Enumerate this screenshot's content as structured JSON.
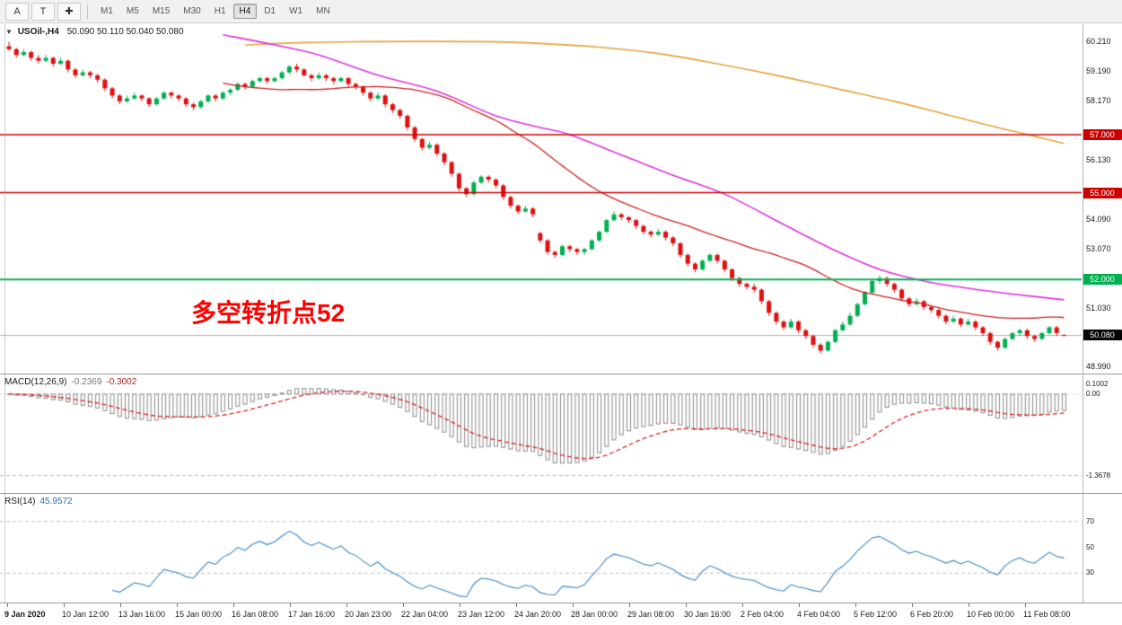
{
  "toolbar": {
    "tools": [
      {
        "id": "arrow-tool",
        "label": "A"
      },
      {
        "id": "text-tool",
        "label": "T"
      },
      {
        "id": "crosshair-tool",
        "label": "✚"
      }
    ],
    "timeframes": [
      "M1",
      "M5",
      "M15",
      "M30",
      "H1",
      "H4",
      "D1",
      "W1",
      "MN"
    ],
    "active_timeframe": "H4"
  },
  "chart": {
    "title": {
      "collapse_arrow": "▼",
      "symbol": "USOil-,H4",
      "ohlc": "50.090 50.110 50.040 50.080"
    },
    "annotation": {
      "text": "多空转折点52",
      "color": "#ff0000"
    }
  },
  "macd_label": {
    "name": "MACD(12,26,9)",
    "value_main": "-0.2369",
    "value_signal": "-0.3002"
  },
  "rsi_label": {
    "name": "RSI(14)",
    "value": "45.9572"
  },
  "chart_data": {
    "type": "candlestick",
    "symbol": "USOil-",
    "timeframe": "H4",
    "x_labels": [
      "9 Jan 2020",
      "10 Jan 12:00",
      "13 Jan 16:00",
      "15 Jan 00:00",
      "16 Jan 08:00",
      "17 Jan 16:00",
      "20 Jan 23:00",
      "22 Jan 04:00",
      "23 Jan 12:00",
      "24 Jan 20:00",
      "28 Jan 00:00",
      "29 Jan 08:00",
      "30 Jan 16:00",
      "2 Feb 04:00",
      "4 Feb 04:00",
      "5 Feb 12:00",
      "6 Feb 20:00",
      "10 Feb 00:00",
      "11 Feb 08:00"
    ],
    "main": {
      "ylim": [
        48.88,
        60.75
      ],
      "up_color": "#00b050",
      "down_color": "#e01010",
      "y_ticks": [
        {
          "label": "60.210",
          "price": 60.21
        },
        {
          "label": "59.190",
          "price": 59.19
        },
        {
          "label": "58.170",
          "price": 58.17
        },
        {
          "label": "56.130",
          "price": 56.13
        },
        {
          "label": "54.090",
          "price": 54.09
        },
        {
          "label": "53.070",
          "price": 53.07
        },
        {
          "label": "51.030",
          "price": 51.03
        },
        {
          "label": "48.990",
          "price": 48.99
        }
      ],
      "hlines": [
        {
          "price": 57.0,
          "label": "57.000",
          "color": "#cc0000"
        },
        {
          "price": 55.0,
          "label": "55.000",
          "color": "#cc0000"
        },
        {
          "price": 52.0,
          "label": "52.000",
          "color": "#00b050"
        }
      ],
      "current_price": {
        "price": 50.08,
        "label": "50.080",
        "line_color": "#b0b0b0",
        "badge_color": "#000000"
      },
      "ma_fast": {
        "period": 30,
        "color": "#cc2222"
      },
      "ma_mid": {
        "color": "#dd33dd",
        "points": [
          [
            29,
            60.45
          ],
          [
            36,
            60.1
          ],
          [
            42,
            59.75
          ],
          [
            50,
            59.05
          ],
          [
            58,
            58.5
          ],
          [
            66,
            57.65
          ],
          [
            72,
            57.25
          ],
          [
            76,
            57.0
          ],
          [
            84,
            56.2
          ],
          [
            90,
            55.6
          ],
          [
            97,
            54.95
          ],
          [
            105,
            53.9
          ],
          [
            112,
            53.0
          ],
          [
            118,
            52.35
          ],
          [
            124,
            51.95
          ],
          [
            130,
            51.7
          ],
          [
            136,
            51.5
          ],
          [
            143,
            51.3
          ]
        ]
      },
      "ma_slow": {
        "color": "#e6a23c",
        "points": [
          [
            32,
            60.1
          ],
          [
            40,
            60.18
          ],
          [
            48,
            60.21
          ],
          [
            56,
            60.22
          ],
          [
            64,
            60.21
          ],
          [
            72,
            60.15
          ],
          [
            80,
            60.02
          ],
          [
            88,
            59.8
          ],
          [
            96,
            59.45
          ],
          [
            104,
            59.05
          ],
          [
            112,
            58.6
          ],
          [
            120,
            58.15
          ],
          [
            127,
            57.7
          ],
          [
            134,
            57.25
          ],
          [
            139,
            56.95
          ],
          [
            143,
            56.7
          ]
        ]
      },
      "candles": [
        [
          60.05,
          60.21,
          59.9,
          59.95
        ],
        [
          59.95,
          60.0,
          59.65,
          59.75
        ],
        [
          59.75,
          59.95,
          59.7,
          59.85
        ],
        [
          59.85,
          59.9,
          59.55,
          59.65
        ],
        [
          59.65,
          59.75,
          59.45,
          59.55
        ],
        [
          59.55,
          59.75,
          59.5,
          59.65
        ],
        [
          59.65,
          59.7,
          59.35,
          59.45
        ],
        [
          59.45,
          59.65,
          59.4,
          59.55
        ],
        [
          59.55,
          59.6,
          59.15,
          59.25
        ],
        [
          59.25,
          59.3,
          58.95,
          59.05
        ],
        [
          59.05,
          59.25,
          59.0,
          59.15
        ],
        [
          59.15,
          59.2,
          58.95,
          59.05
        ],
        [
          59.05,
          59.1,
          58.8,
          58.9
        ],
        [
          58.9,
          58.95,
          58.5,
          58.6
        ],
        [
          58.6,
          58.65,
          58.25,
          58.35
        ],
        [
          58.35,
          58.4,
          58.05,
          58.15
        ],
        [
          58.15,
          58.35,
          58.1,
          58.25
        ],
        [
          58.25,
          58.45,
          58.2,
          58.35
        ],
        [
          58.35,
          58.4,
          58.15,
          58.25
        ],
        [
          58.25,
          58.3,
          57.95,
          58.05
        ],
        [
          58.05,
          58.3,
          58.0,
          58.25
        ],
        [
          58.25,
          58.5,
          58.2,
          58.45
        ],
        [
          58.45,
          58.5,
          58.25,
          58.35
        ],
        [
          58.35,
          58.4,
          58.15,
          58.25
        ],
        [
          58.25,
          58.3,
          57.95,
          58.05
        ],
        [
          58.05,
          58.1,
          57.85,
          57.95
        ],
        [
          57.95,
          58.2,
          57.9,
          58.15
        ],
        [
          58.15,
          58.4,
          58.1,
          58.35
        ],
        [
          58.35,
          58.4,
          58.15,
          58.25
        ],
        [
          58.25,
          58.5,
          58.2,
          58.45
        ],
        [
          58.45,
          58.6,
          58.35,
          58.55
        ],
        [
          58.55,
          58.8,
          58.5,
          58.75
        ],
        [
          58.75,
          58.8,
          58.55,
          58.65
        ],
        [
          58.65,
          58.9,
          58.6,
          58.85
        ],
        [
          58.85,
          59.0,
          58.8,
          58.95
        ],
        [
          58.95,
          59.0,
          58.75,
          58.85
        ],
        [
          58.85,
          59.0,
          58.8,
          58.95
        ],
        [
          58.95,
          59.2,
          58.9,
          59.15
        ],
        [
          59.15,
          59.4,
          59.1,
          59.35
        ],
        [
          59.35,
          59.45,
          59.15,
          59.25
        ],
        [
          59.25,
          59.3,
          59.0,
          59.05
        ],
        [
          59.05,
          59.1,
          58.85,
          58.95
        ],
        [
          58.95,
          59.15,
          58.9,
          59.05
        ],
        [
          59.05,
          59.1,
          58.85,
          58.95
        ],
        [
          58.95,
          59.0,
          58.75,
          58.85
        ],
        [
          58.85,
          59.0,
          58.8,
          58.95
        ],
        [
          58.95,
          59.0,
          58.65,
          58.75
        ],
        [
          58.75,
          58.8,
          58.55,
          58.65
        ],
        [
          58.65,
          58.7,
          58.35,
          58.45
        ],
        [
          58.45,
          58.5,
          58.15,
          58.25
        ],
        [
          58.25,
          58.45,
          58.2,
          58.35
        ],
        [
          58.35,
          58.4,
          57.95,
          58.05
        ],
        [
          58.05,
          58.1,
          57.75,
          57.85
        ],
        [
          57.85,
          57.9,
          57.55,
          57.65
        ],
        [
          57.65,
          57.7,
          57.15,
          57.25
        ],
        [
          57.25,
          57.3,
          56.75,
          56.85
        ],
        [
          56.85,
          56.9,
          56.45,
          56.55
        ],
        [
          56.55,
          56.75,
          56.5,
          56.65
        ],
        [
          56.65,
          56.7,
          56.25,
          56.35
        ],
        [
          56.35,
          56.4,
          55.95,
          56.05
        ],
        [
          56.05,
          56.1,
          55.55,
          55.65
        ],
        [
          55.65,
          55.7,
          55.05,
          55.15
        ],
        [
          55.15,
          55.2,
          54.85,
          54.95
        ],
        [
          54.95,
          55.4,
          54.9,
          55.35
        ],
        [
          55.35,
          55.6,
          55.3,
          55.55
        ],
        [
          55.55,
          55.6,
          55.35,
          55.45
        ],
        [
          55.45,
          55.5,
          55.15,
          55.25
        ],
        [
          55.25,
          55.3,
          54.75,
          54.85
        ],
        [
          54.85,
          54.9,
          54.45,
          54.55
        ],
        [
          54.55,
          54.6,
          54.25,
          54.35
        ],
        [
          54.35,
          54.55,
          54.3,
          54.45
        ],
        [
          54.45,
          54.5,
          54.15,
          54.25
        ],
        [
          53.6,
          53.65,
          53.25,
          53.35
        ],
        [
          53.35,
          53.4,
          52.85,
          52.95
        ],
        [
          52.95,
          53.0,
          52.75,
          52.85
        ],
        [
          52.85,
          53.2,
          52.8,
          53.15
        ],
        [
          53.15,
          53.2,
          52.95,
          53.05
        ],
        [
          53.05,
          53.1,
          52.85,
          52.95
        ],
        [
          52.95,
          53.1,
          52.85,
          53.05
        ],
        [
          53.05,
          53.4,
          53.0,
          53.35
        ],
        [
          53.35,
          53.7,
          53.3,
          53.65
        ],
        [
          53.65,
          54.1,
          53.6,
          54.05
        ],
        [
          54.05,
          54.35,
          54.0,
          54.25
        ],
        [
          54.25,
          54.3,
          54.05,
          54.15
        ],
        [
          54.15,
          54.2,
          53.95,
          54.05
        ],
        [
          54.05,
          54.1,
          53.75,
          53.85
        ],
        [
          53.85,
          53.9,
          53.55,
          53.65
        ],
        [
          53.65,
          53.7,
          53.45,
          53.55
        ],
        [
          53.55,
          53.75,
          53.5,
          53.65
        ],
        [
          53.65,
          53.7,
          53.35,
          53.45
        ],
        [
          53.45,
          53.5,
          53.15,
          53.25
        ],
        [
          53.25,
          53.3,
          52.75,
          52.85
        ],
        [
          52.85,
          52.9,
          52.45,
          52.55
        ],
        [
          52.55,
          52.6,
          52.25,
          52.35
        ],
        [
          52.35,
          52.7,
          52.3,
          52.65
        ],
        [
          52.65,
          52.9,
          52.6,
          52.85
        ],
        [
          52.85,
          52.9,
          52.55,
          52.65
        ],
        [
          52.65,
          52.7,
          52.25,
          52.35
        ],
        [
          52.35,
          52.4,
          51.95,
          52.05
        ],
        [
          52.05,
          52.1,
          51.75,
          51.85
        ],
        [
          51.85,
          51.9,
          51.65,
          51.75
        ],
        [
          51.75,
          51.85,
          51.55,
          51.65
        ],
        [
          51.65,
          51.7,
          51.15,
          51.25
        ],
        [
          51.25,
          51.3,
          50.75,
          50.85
        ],
        [
          50.85,
          50.9,
          50.45,
          50.55
        ],
        [
          50.55,
          50.6,
          50.25,
          50.35
        ],
        [
          50.35,
          50.65,
          50.3,
          50.55
        ],
        [
          50.55,
          50.6,
          50.15,
          50.25
        ],
        [
          50.25,
          50.3,
          49.95,
          50.05
        ],
        [
          50.05,
          50.1,
          49.65,
          49.75
        ],
        [
          49.75,
          49.8,
          49.45,
          49.55
        ],
        [
          49.55,
          49.9,
          49.5,
          49.85
        ],
        [
          49.85,
          50.3,
          49.8,
          50.25
        ],
        [
          50.25,
          50.55,
          50.2,
          50.45
        ],
        [
          50.45,
          50.85,
          50.4,
          50.75
        ],
        [
          50.75,
          51.2,
          50.7,
          51.15
        ],
        [
          51.15,
          51.6,
          51.1,
          51.55
        ],
        [
          51.55,
          52.0,
          51.5,
          51.95
        ],
        [
          51.95,
          52.15,
          51.85,
          52.05
        ],
        [
          52.05,
          52.1,
          51.75,
          51.85
        ],
        [
          51.85,
          51.9,
          51.55,
          51.65
        ],
        [
          51.65,
          51.7,
          51.25,
          51.35
        ],
        [
          51.35,
          51.4,
          51.05,
          51.15
        ],
        [
          51.15,
          51.35,
          51.1,
          51.25
        ],
        [
          51.25,
          51.3,
          50.95,
          51.05
        ],
        [
          51.05,
          51.1,
          50.85,
          50.95
        ],
        [
          50.95,
          51.0,
          50.65,
          50.75
        ],
        [
          50.75,
          50.8,
          50.45,
          50.55
        ],
        [
          50.55,
          50.75,
          50.5,
          50.65
        ],
        [
          50.65,
          50.7,
          50.35,
          50.45
        ],
        [
          50.45,
          50.65,
          50.4,
          50.55
        ],
        [
          50.55,
          50.6,
          50.25,
          50.35
        ],
        [
          50.35,
          50.4,
          50.05,
          50.15
        ],
        [
          50.15,
          50.2,
          49.75,
          49.85
        ],
        [
          49.85,
          49.9,
          49.55,
          49.65
        ],
        [
          49.65,
          50.0,
          49.6,
          49.95
        ],
        [
          49.95,
          50.2,
          49.9,
          50.15
        ],
        [
          50.15,
          50.3,
          50.05,
          50.25
        ],
        [
          50.25,
          50.3,
          49.95,
          50.05
        ],
        [
          50.05,
          50.1,
          49.85,
          49.95
        ],
        [
          49.95,
          50.2,
          49.9,
          50.15
        ],
        [
          50.15,
          50.4,
          50.1,
          50.35
        ],
        [
          50.35,
          50.4,
          50.05,
          50.15
        ],
        [
          50.09,
          50.11,
          50.04,
          50.08
        ]
      ]
    },
    "macd": {
      "fast": 12,
      "slow": 26,
      "signal": 9,
      "ylim": [
        -1.6,
        0.3
      ],
      "hist_color": "#8a8a8a",
      "signal_color": "#dd2222",
      "level": -1.3678,
      "ticks": [
        {
          "label": "0.1002",
          "value": 0.1002,
          "dy": -4
        },
        {
          "label": "0.00",
          "value": 0.0,
          "dy": 0
        },
        {
          "label": "-1.3678",
          "value": -1.3678,
          "dy": 0
        }
      ]
    },
    "rsi": {
      "period": 14,
      "ylim": [
        10,
        90
      ],
      "color": "#3a87c8",
      "levels": [
        70,
        30
      ],
      "ticks": [
        {
          "label": "70",
          "value": 70
        },
        {
          "label": "50",
          "value": 50
        },
        {
          "label": "30",
          "value": 30
        }
      ]
    }
  }
}
